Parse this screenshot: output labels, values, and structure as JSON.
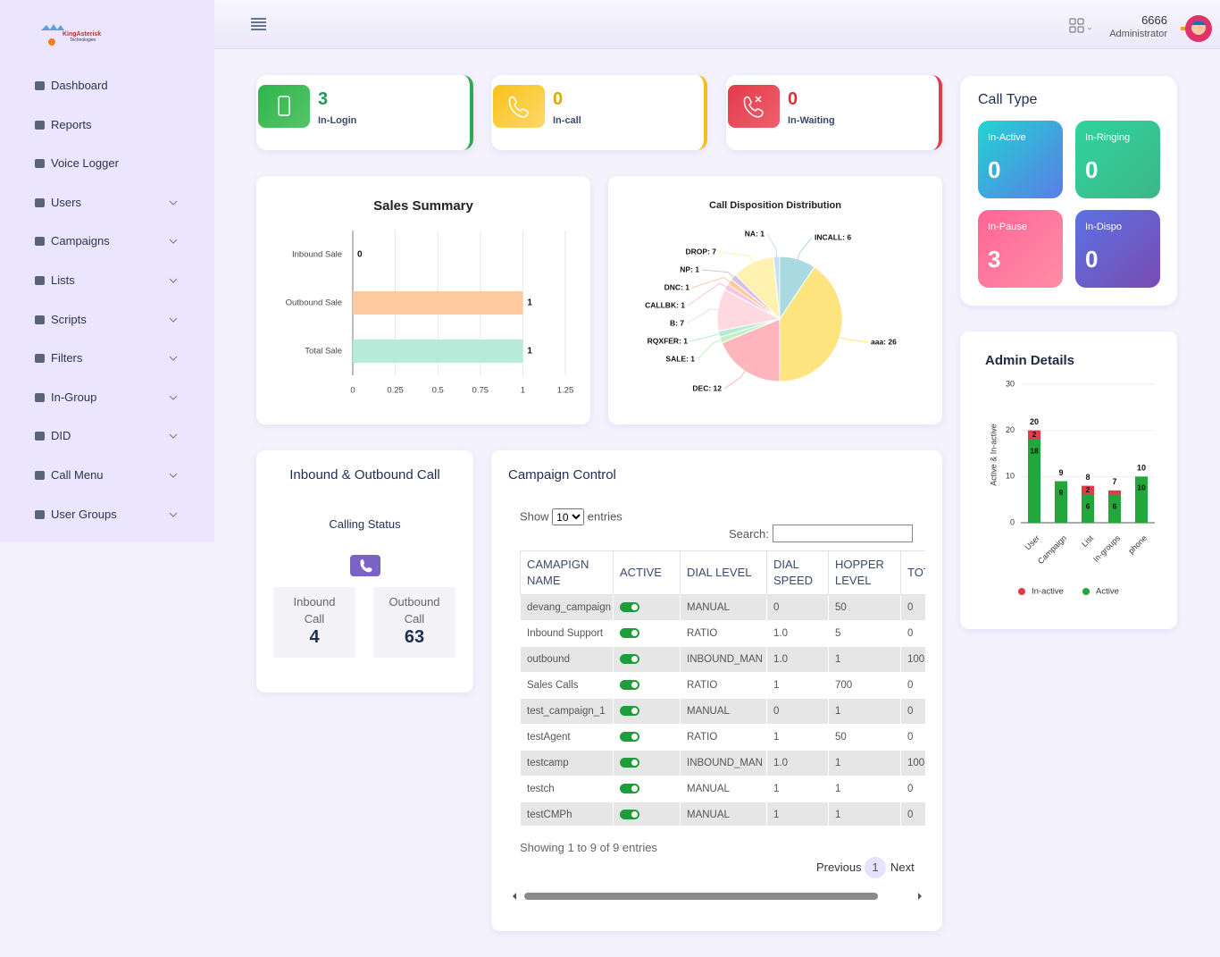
{
  "logo": {
    "name": "KingAsterisk",
    "tagline": "Technologies"
  },
  "sidebar": {
    "items": [
      {
        "label": "Dashboard",
        "expandable": false
      },
      {
        "label": "Reports",
        "expandable": false
      },
      {
        "label": "Voice Logger",
        "expandable": false
      },
      {
        "label": "Users",
        "expandable": true
      },
      {
        "label": "Campaigns",
        "expandable": true
      },
      {
        "label": "Lists",
        "expandable": true
      },
      {
        "label": "Scripts",
        "expandable": true
      },
      {
        "label": "Filters",
        "expandable": true
      },
      {
        "label": "In-Group",
        "expandable": true
      },
      {
        "label": "DID",
        "expandable": true
      },
      {
        "label": "Call Menu",
        "expandable": true
      },
      {
        "label": "User Groups",
        "expandable": true
      }
    ]
  },
  "header": {
    "user": "6666",
    "role": "Administrator"
  },
  "stats": [
    {
      "value": 3,
      "label": "In-Login"
    },
    {
      "value": 0,
      "label": "In-call"
    },
    {
      "value": 0,
      "label": "In-Waiting"
    }
  ],
  "call_type": {
    "title": "Call Type",
    "tiles": [
      {
        "label": "In-Active",
        "value": 0
      },
      {
        "label": "In-Ringing",
        "value": 0
      },
      {
        "label": "In-Pause",
        "value": 3
      },
      {
        "label": "In-Dispo",
        "value": 0
      }
    ]
  },
  "inbound_outbound": {
    "title": "Inbound & Outbound Call",
    "subtitle": "Calling Status",
    "boxes": [
      {
        "label": "Inbound Call",
        "value": 4
      },
      {
        "label": "Outbound Call",
        "value": 63
      }
    ]
  },
  "campaign_control": {
    "title": "Campaign Control",
    "show": "Show",
    "page_size": "10",
    "entries": "entries",
    "search": "Search:",
    "columns": [
      "CAMAPIGN NAME",
      "ACTIVE",
      "DIAL LEVEL",
      "DIAL SPEED",
      "HOPPER LEVEL",
      "TOTAL LEADS"
    ],
    "rows": [
      [
        "devang_campaign",
        true,
        "MANUAL",
        "0",
        "50",
        "0"
      ],
      [
        "Inbound Support",
        true,
        "RATIO",
        "1.0",
        "5",
        "0"
      ],
      [
        "outbound",
        true,
        "INBOUND_MAN",
        "1.0",
        "1",
        "100"
      ],
      [
        "Sales Calls",
        true,
        "RATIO",
        "1",
        "700",
        "0"
      ],
      [
        "test_campaign_1",
        true,
        "MANUAL",
        "0",
        "1",
        "0"
      ],
      [
        "testAgent",
        true,
        "RATIO",
        "1",
        "50",
        "0"
      ],
      [
        "testcamp",
        true,
        "INBOUND_MAN",
        "1.0",
        "1",
        "100"
      ],
      [
        "testch",
        true,
        "MANUAL",
        "1",
        "1",
        "0"
      ],
      [
        "testCMPh",
        true,
        "MANUAL",
        "1",
        "1",
        "0"
      ]
    ],
    "info": "Showing 1 to 9 of 9 entries",
    "prev": "Previous",
    "page": "1",
    "next": "Next"
  },
  "chart_data": [
    {
      "type": "bar",
      "orientation": "horizontal",
      "title": "Sales Summary",
      "categories": [
        "Inbound Sale",
        "Outbound Sale",
        "Total Sale"
      ],
      "values": [
        0,
        1,
        1
      ],
      "colors": [
        "#b6ead7",
        "#ffc9a0",
        "#b5ebd8"
      ],
      "xlim": [
        0,
        1.25
      ],
      "xticks": [
        0,
        0.25,
        0.5,
        0.75,
        1,
        1.25
      ],
      "grid": true
    },
    {
      "type": "pie",
      "title": "Call Disposition Distribution",
      "values": [
        6,
        26,
        12,
        1,
        1,
        7,
        1,
        1,
        1,
        7,
        1
      ],
      "value_labels": [
        "INCALL: 6",
        "aaa: 26",
        "DEC: 12",
        "SALE: 1",
        "RQXFER: 1",
        "B: 7",
        "CALLBK: 1",
        "DNC: 1",
        "NP: 1",
        "DROP: 7",
        "NA: 1"
      ],
      "colors": [
        "#a8dadf",
        "#fde47f",
        "#ffb5bd",
        "#c5f0c6",
        "#b5ead7",
        "#ffd9e2",
        "#f7c6dc",
        "#ffcba4",
        "#d4c1e6",
        "#fff1b0",
        "#bfe1fb"
      ]
    },
    {
      "type": "stacked_bar",
      "title": "Admin Details",
      "categories": [
        "User",
        "Campaign",
        "List",
        "In-groups",
        "phone"
      ],
      "series": [
        {
          "name": "In-active",
          "color": "#e23b4a",
          "values": [
            2,
            0,
            2,
            1,
            0
          ]
        },
        {
          "name": "Active",
          "color": "#23a73c",
          "values": [
            18,
            9,
            6,
            6,
            10
          ]
        }
      ],
      "total_labels": [
        "20",
        "9",
        "8",
        "7",
        "10"
      ],
      "ylim": [
        0,
        30
      ],
      "yticks": [
        0,
        10,
        20,
        30
      ],
      "ylabel": "Active & In-active",
      "grid": true
    }
  ]
}
